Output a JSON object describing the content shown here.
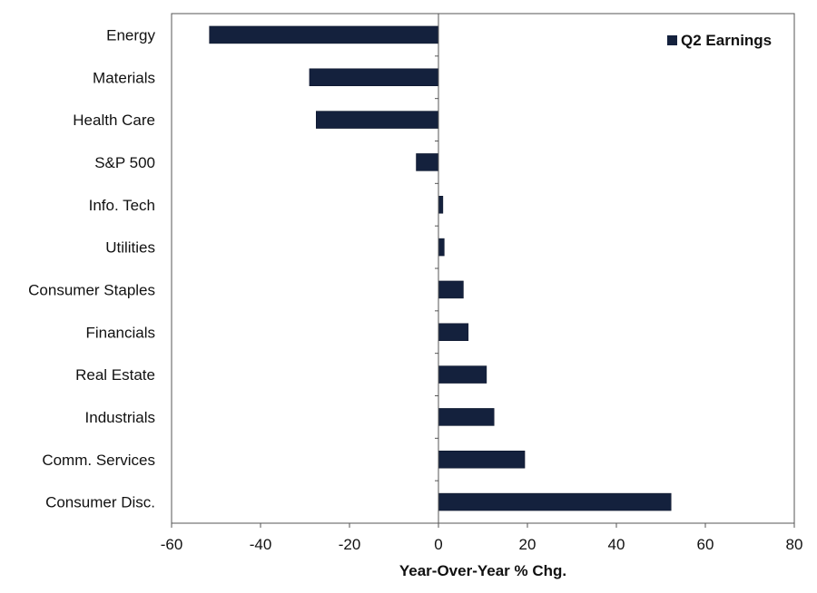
{
  "chart_data": {
    "type": "bar",
    "orientation": "horizontal",
    "categories": [
      "Energy",
      "Materials",
      "Health Care",
      "S&P 500",
      "Info. Tech",
      "Utilities",
      "Consumer Staples",
      "Financials",
      "Real Estate",
      "Industrials",
      "Comm. Services",
      "Consumer Disc."
    ],
    "series": [
      {
        "name": "Q2 Earnings",
        "values": [
          -51.5,
          -29.0,
          -27.5,
          -5.0,
          1.0,
          1.3,
          5.6,
          6.7,
          10.8,
          12.5,
          19.4,
          52.3
        ]
      }
    ],
    "xlabel": "Year-Over-Year % Chg.",
    "ylabel": "",
    "xlim": [
      -60,
      80
    ],
    "xticks": [
      "-60",
      "-40",
      "-20",
      "0",
      "20",
      "40",
      "60",
      "80"
    ],
    "grid": false,
    "legend": {
      "position": "top-right"
    },
    "colors": {
      "bar": "#14213d",
      "axis": "#555555",
      "text": "#111111"
    }
  }
}
